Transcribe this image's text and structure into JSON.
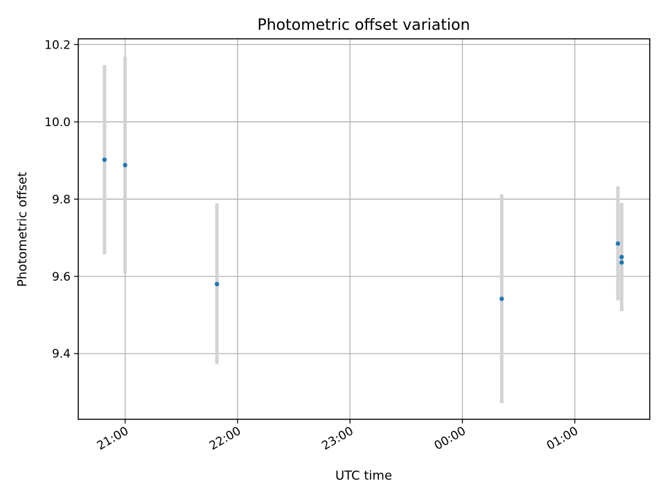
{
  "chart_data": {
    "type": "scatter",
    "title": "Photometric offset variation",
    "xlabel": "UTC time",
    "ylabel": "Photometric offset",
    "x_axis": {
      "kind": "time",
      "range": [
        "20:35",
        "01:40"
      ],
      "ticks": [
        "21:00",
        "22:00",
        "23:00",
        "00:00",
        "01:00"
      ]
    },
    "y_axis": {
      "range": [
        9.23,
        10.215
      ],
      "ticks": [
        9.4,
        9.6,
        9.8,
        10.0,
        10.2
      ],
      "tick_labels": [
        "9.4",
        "9.6",
        "9.8",
        "10.0",
        "10.2"
      ]
    },
    "grid": true,
    "series": [
      {
        "marker_color": "#1f77b4",
        "errorbar_color": "#d3d3d3",
        "points": [
          {
            "x": "20:49",
            "y": 9.902,
            "ylow": 9.657,
            "yhigh": 10.147
          },
          {
            "x": "20:60",
            "y": 9.888,
            "ylow": 9.607,
            "yhigh": 10.169
          },
          {
            "x": "21:49",
            "y": 9.58,
            "ylow": 9.373,
            "yhigh": 9.789
          },
          {
            "x": "00:21",
            "y": 9.542,
            "ylow": 9.272,
            "yhigh": 9.812
          },
          {
            "x": "01:23",
            "y": 9.685,
            "ylow": 9.538,
            "yhigh": 9.833
          },
          {
            "x": "01:25",
            "y": 9.65,
            "ylow": 9.51,
            "yhigh": 9.79
          },
          {
            "x": "01:25",
            "y": 9.636,
            "ylow": 9.512,
            "yhigh": 9.79
          }
        ]
      }
    ]
  }
}
